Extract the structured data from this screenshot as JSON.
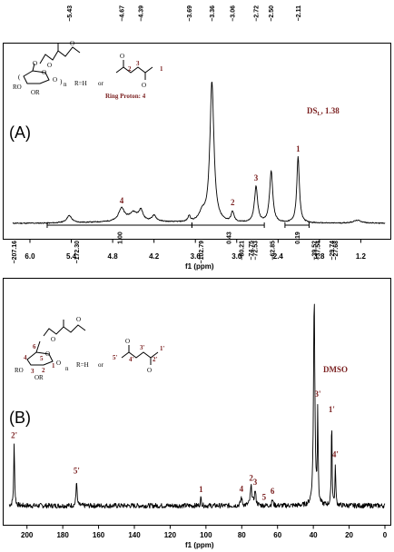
{
  "chart_data": [
    {
      "type": "line",
      "panel_label": "(A)",
      "xlabel": "f1 (ppm)",
      "xlim": [
        6.25,
        0.85
      ],
      "x_ticks": [
        6.0,
        5.4,
        4.8,
        4.2,
        3.6,
        3.0,
        2.4,
        1.8,
        1.2
      ],
      "x_tick_labels": [
        "6.0",
        "5.4",
        "4.8",
        "4.2",
        "3.6",
        "3.0",
        "2.4",
        "1.8",
        "1.2"
      ],
      "top_peak_labels": [
        {
          "ppm": 5.43,
          "text": "−5.43"
        },
        {
          "ppm": 4.67,
          "text": "−4.67"
        },
        {
          "ppm": 4.39,
          "text": "−4.39"
        },
        {
          "ppm": 3.69,
          "text": "−3.69"
        },
        {
          "ppm": 3.36,
          "text": "−3.36"
        },
        {
          "ppm": 3.06,
          "text": "−3.06"
        },
        {
          "ppm": 2.72,
          "text": "−2.72"
        },
        {
          "ppm": 2.5,
          "text": "−2.50"
        },
        {
          "ppm": 2.11,
          "text": "−2.11"
        }
      ],
      "peaks": [
        {
          "ppm": 5.43,
          "height": 0.05,
          "width": 0.09
        },
        {
          "ppm": 4.67,
          "height": 0.09,
          "width": 0.1
        },
        {
          "ppm": 4.5,
          "height": 0.06,
          "width": 0.15
        },
        {
          "ppm": 4.39,
          "height": 0.07,
          "width": 0.07
        },
        {
          "ppm": 4.2,
          "height": 0.04,
          "width": 0.08
        },
        {
          "ppm": 3.69,
          "height": 0.04,
          "width": 0.04
        },
        {
          "ppm": 3.36,
          "height": 0.98,
          "width": 0.07
        },
        {
          "ppm": 3.5,
          "height": 0.06,
          "width": 0.1
        },
        {
          "ppm": 3.06,
          "height": 0.07,
          "width": 0.05
        },
        {
          "ppm": 2.72,
          "height": 0.25,
          "width": 0.055
        },
        {
          "ppm": 2.5,
          "height": 0.36,
          "width": 0.055
        },
        {
          "ppm": 2.11,
          "height": 0.46,
          "width": 0.045
        },
        {
          "ppm": 1.25,
          "height": 0.02,
          "width": 0.15
        }
      ],
      "peak_numbers": [
        {
          "ppm": 4.67,
          "text": "4"
        },
        {
          "ppm": 3.06,
          "text": "2"
        },
        {
          "ppm": 2.72,
          "text": "3"
        },
        {
          "ppm": 2.11,
          "text": "1"
        }
      ],
      "integrals": [
        {
          "from": 5.75,
          "to": 3.65,
          "value": "1.00"
        },
        {
          "from": 3.65,
          "to": 2.6,
          "value": "0.43"
        },
        {
          "from": 2.3,
          "to": 1.95,
          "value": "0.19"
        }
      ],
      "annotation": "DS",
      "annotation_sub": "L",
      "annotation_value": ", 1.38",
      "structure": {
        "r_eq": "R=H",
        "or": "or",
        "ring_proton": "Ring Proton: 4",
        "n": "n",
        "ro": "RO",
        "o_r": "OR",
        "o": "O",
        "nums": [
          "2",
          "3",
          "1"
        ]
      }
    },
    {
      "type": "line",
      "panel_label": "(B)",
      "xlabel": "f1 (ppm)",
      "xlim": [
        210,
        0
      ],
      "x_ticks": [
        200,
        180,
        160,
        140,
        120,
        100,
        80,
        60,
        40,
        20,
        0
      ],
      "x_tick_labels": [
        "200",
        "180",
        "160",
        "140",
        "120",
        "100",
        "80",
        "60",
        "40",
        "20",
        "0"
      ],
      "top_peak_labels": [
        {
          "ppm": 207.16,
          "text": "−207.16"
        },
        {
          "ppm": 172.3,
          "text": "−172.30"
        },
        {
          "ppm": 102.79,
          "text": "−102.79"
        },
        {
          "ppm": 80.21,
          "text": "−80.21"
        },
        {
          "ppm": 74.75,
          "text": "−74.75"
        },
        {
          "ppm": 72.53,
          "text": "−72.53"
        },
        {
          "ppm": 62.85,
          "text": "−62.85"
        },
        {
          "ppm": 39.52,
          "text": "−39.52"
        },
        {
          "ppm": 37.54,
          "text": "−37.54"
        },
        {
          "ppm": 29.74,
          "text": "−29.74"
        },
        {
          "ppm": 27.68,
          "text": "−27.68"
        }
      ],
      "peaks": [
        {
          "ppm": 207.16,
          "height": 0.3,
          "width": 0.6
        },
        {
          "ppm": 172.3,
          "height": 0.13,
          "width": 0.6
        },
        {
          "ppm": 102.79,
          "height": 0.04,
          "width": 0.6
        },
        {
          "ppm": 80.21,
          "height": 0.04,
          "width": 0.9
        },
        {
          "ppm": 74.75,
          "height": 0.09,
          "width": 1.1
        },
        {
          "ppm": 72.53,
          "height": 0.07,
          "width": 1.0
        },
        {
          "ppm": 62.85,
          "height": 0.03,
          "width": 0.8
        },
        {
          "ppm": 39.52,
          "height": 1.0,
          "width": 0.9
        },
        {
          "ppm": 37.54,
          "height": 0.45,
          "width": 0.5
        },
        {
          "ppm": 29.74,
          "height": 0.42,
          "width": 0.5
        },
        {
          "ppm": 27.68,
          "height": 0.2,
          "width": 0.5
        }
      ],
      "peak_numbers": [
        {
          "ppm": 207.16,
          "text": "2'"
        },
        {
          "ppm": 172.3,
          "text": "5'"
        },
        {
          "ppm": 102.79,
          "text": "1"
        },
        {
          "ppm": 80.21,
          "text": "4"
        },
        {
          "ppm": 74.75,
          "text": "2"
        },
        {
          "ppm": 72.53,
          "text": "3"
        },
        {
          "ppm": 67.5,
          "text": "5"
        },
        {
          "ppm": 62.85,
          "text": "6"
        },
        {
          "ppm": 37.54,
          "text": "3'"
        },
        {
          "ppm": 29.74,
          "text": "1'"
        },
        {
          "ppm": 27.68,
          "text": "4'"
        }
      ],
      "annotation": "DMSO",
      "structure": {
        "r_eq": "R=H",
        "or": "or",
        "n": "n",
        "ro": "RO",
        "o_r": "OR",
        "o": "O",
        "nums": [
          "5'",
          "4'",
          "3'",
          "2'",
          "1'"
        ],
        "ring_nums": [
          "6",
          "5",
          "4",
          "3",
          "2",
          "1"
        ]
      }
    }
  ]
}
